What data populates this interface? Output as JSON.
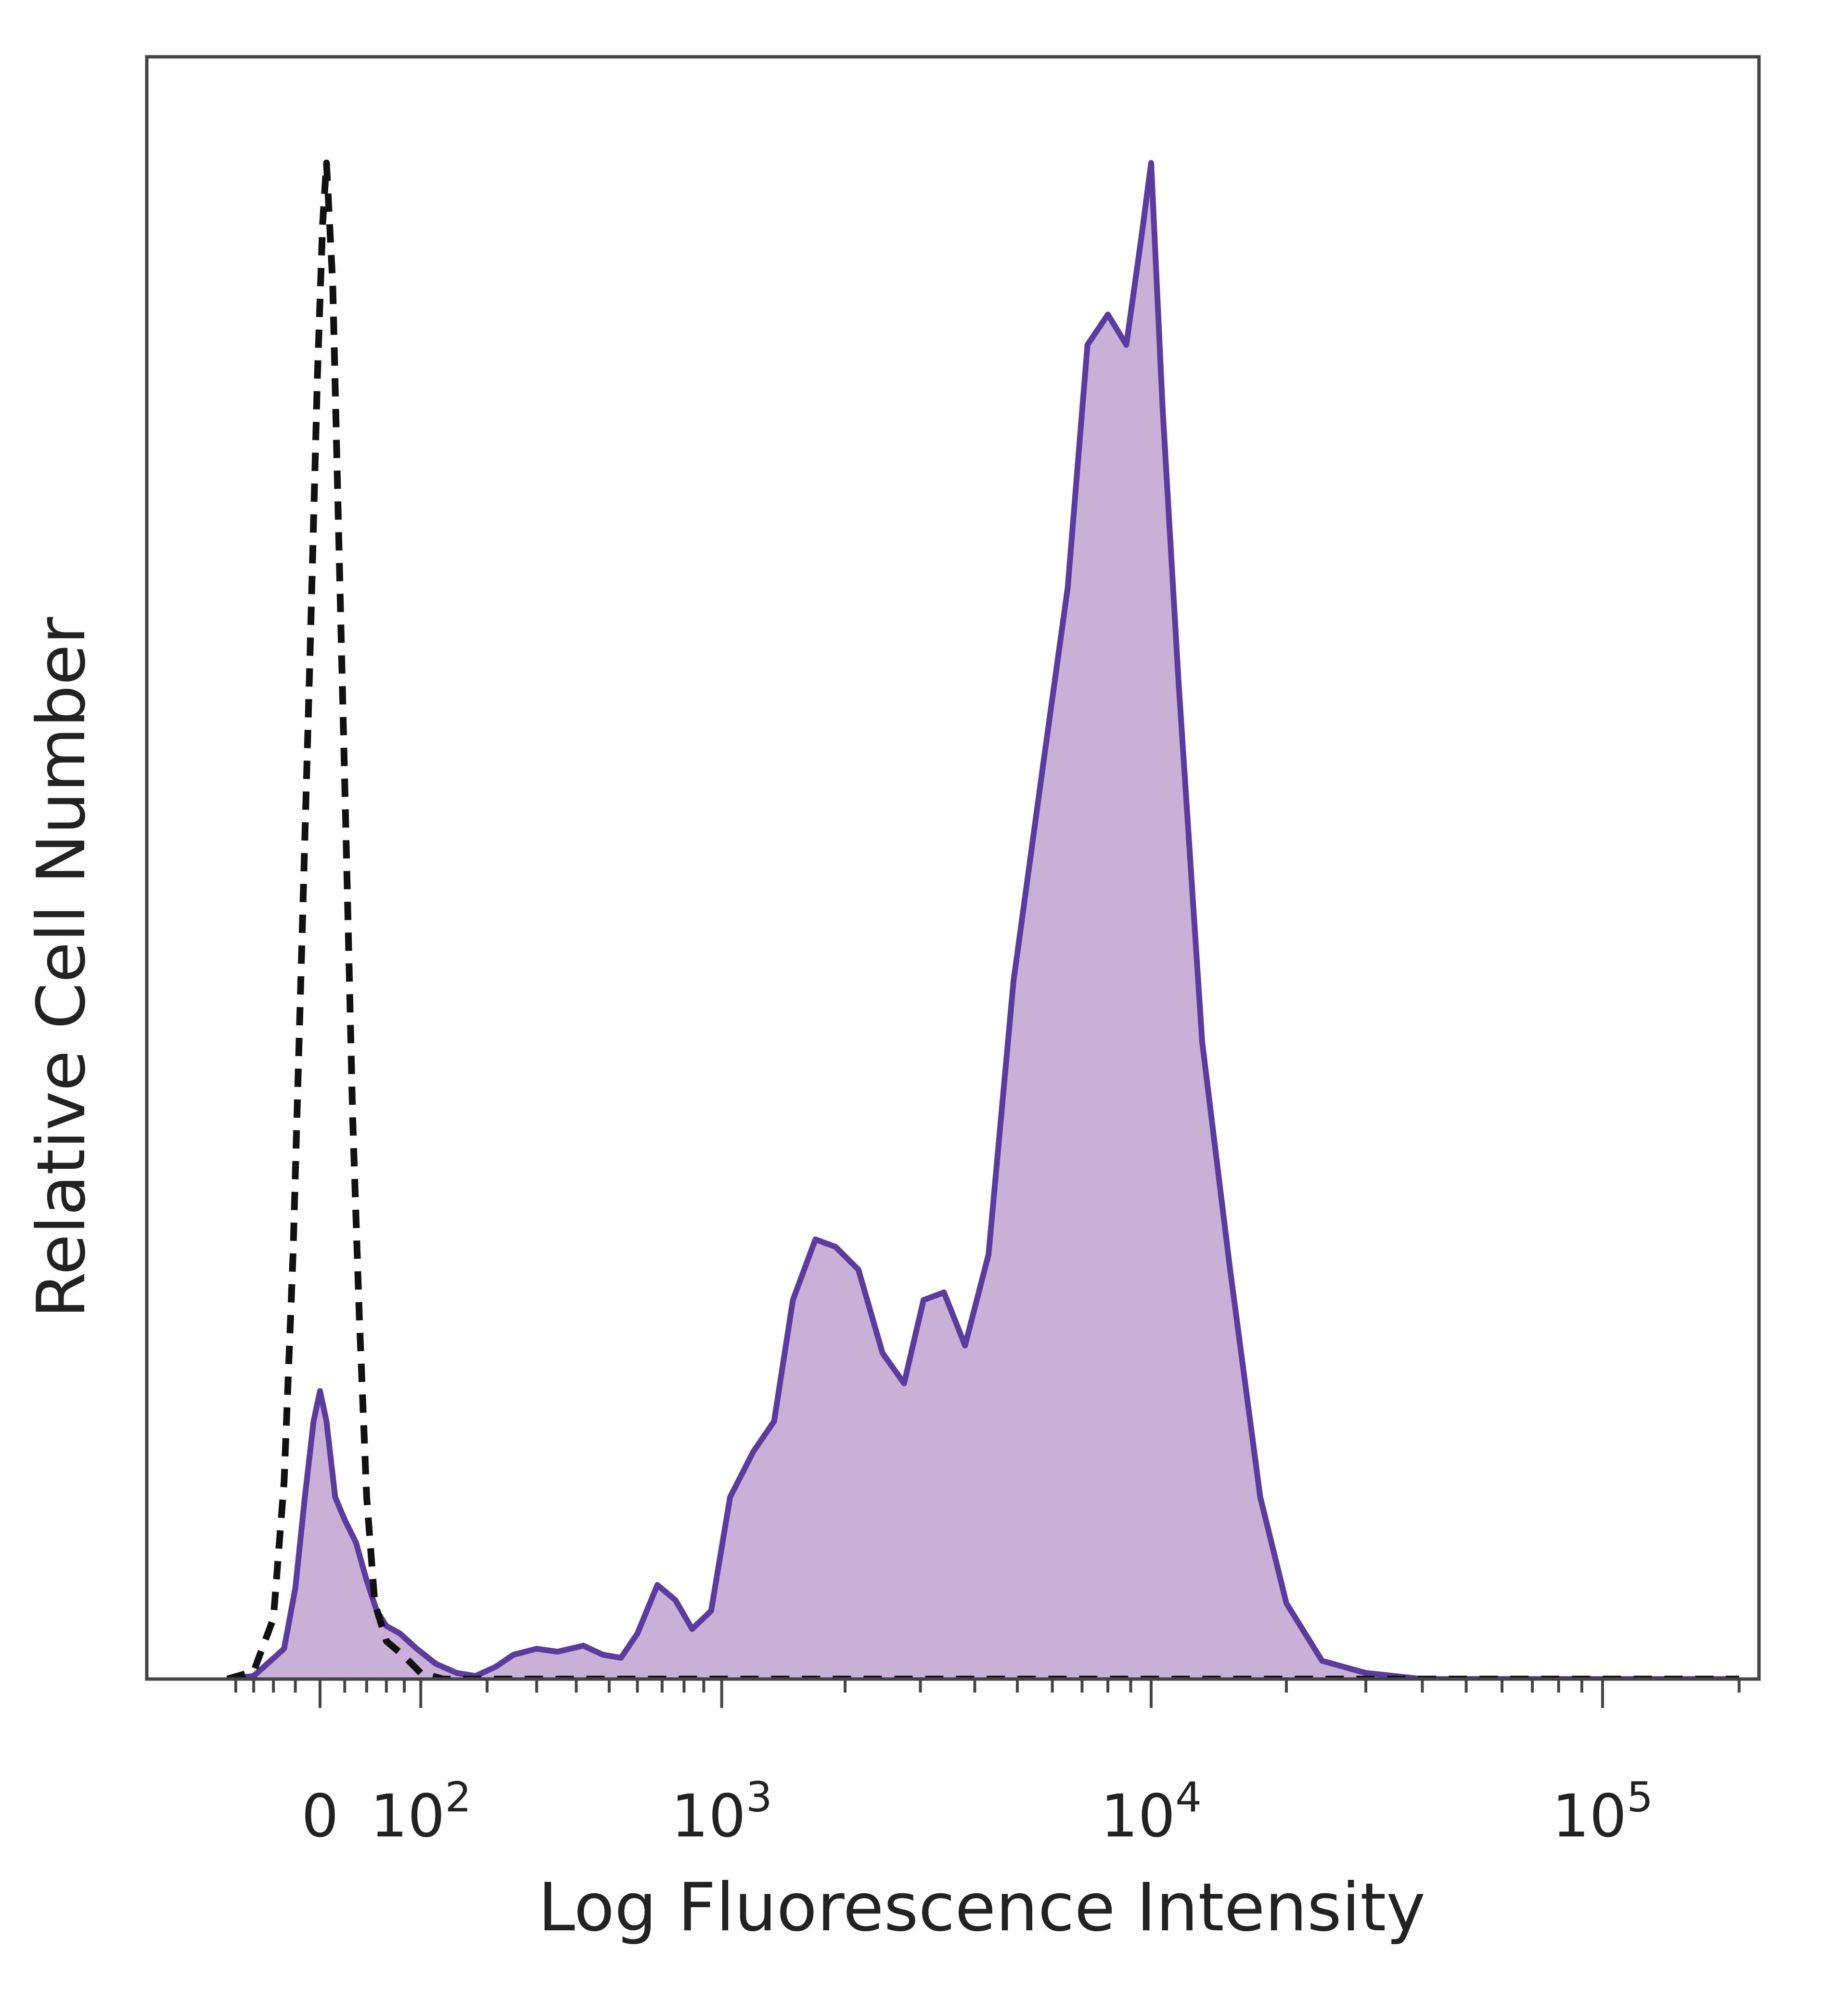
{
  "chart_data": {
    "type": "area",
    "title": "",
    "xlabel": "Log Fluorescence Intensity",
    "ylabel": "Relative Cell Number",
    "x_scale": "biexponential",
    "x_range": [
      -100,
      200000
    ],
    "y_range": [
      0,
      1.07
    ],
    "grid": false,
    "legend": "none",
    "x_ticks": [
      {
        "value": 0,
        "base": "0",
        "exp": ""
      },
      {
        "value": 100,
        "base": "10",
        "exp": "2"
      },
      {
        "value": 1000,
        "base": "10",
        "exp": "3"
      },
      {
        "value": 10000,
        "base": "10",
        "exp": "4"
      },
      {
        "value": 100000,
        "base": "10",
        "exp": "5"
      }
    ],
    "series": [
      {
        "style": "dashed-line",
        "color": "#111111",
        "points": [
          [
            -90,
            0
          ],
          [
            -60,
            0.005
          ],
          [
            -40,
            0.04
          ],
          [
            -30,
            0.13
          ],
          [
            -22,
            0.28
          ],
          [
            -15,
            0.47
          ],
          [
            -8,
            0.67
          ],
          [
            -2,
            0.86
          ],
          [
            2,
            0.96
          ],
          [
            5,
            1.0
          ],
          [
            10,
            0.92
          ],
          [
            15,
            0.75
          ],
          [
            21,
            0.56
          ],
          [
            27,
            0.37
          ],
          [
            33,
            0.24
          ],
          [
            40,
            0.12
          ],
          [
            48,
            0.05
          ],
          [
            60,
            0.025
          ],
          [
            80,
            0.015
          ],
          [
            100,
            0.004
          ],
          [
            130,
            0
          ],
          [
            200000,
            0
          ]
        ]
      },
      {
        "style": "filled",
        "color": "#5b3b9e",
        "fill": "#c9b0d6",
        "points": [
          [
            -90,
            0
          ],
          [
            -60,
            0.002
          ],
          [
            -30,
            0.02
          ],
          [
            -20,
            0.06
          ],
          [
            -12,
            0.12
          ],
          [
            -5,
            0.17
          ],
          [
            0,
            0.19
          ],
          [
            5,
            0.17
          ],
          [
            12,
            0.12
          ],
          [
            20,
            0.105
          ],
          [
            30,
            0.09
          ],
          [
            40,
            0.065
          ],
          [
            50,
            0.045
          ],
          [
            60,
            0.035
          ],
          [
            75,
            0.03
          ],
          [
            95,
            0.02
          ],
          [
            120,
            0.01
          ],
          [
            150,
            0.004
          ],
          [
            180,
            0.002
          ],
          [
            215,
            0.008
          ],
          [
            250,
            0.016
          ],
          [
            300,
            0.02
          ],
          [
            350,
            0.018
          ],
          [
            420,
            0.022
          ],
          [
            480,
            0.016
          ],
          [
            540,
            0.014
          ],
          [
            600,
            0.03
          ],
          [
            680,
            0.062
          ],
          [
            760,
            0.052
          ],
          [
            840,
            0.033
          ],
          [
            940,
            0.045
          ],
          [
            1050,
            0.12
          ],
          [
            1200,
            0.15
          ],
          [
            1350,
            0.17
          ],
          [
            1500,
            0.25
          ],
          [
            1700,
            0.29
          ],
          [
            1900,
            0.285
          ],
          [
            2150,
            0.27
          ],
          [
            2450,
            0.215
          ],
          [
            2750,
            0.195
          ],
          [
            3050,
            0.25
          ],
          [
            3400,
            0.255
          ],
          [
            3800,
            0.22
          ],
          [
            4300,
            0.28
          ],
          [
            4900,
            0.46
          ],
          [
            5700,
            0.6
          ],
          [
            6500,
            0.72
          ],
          [
            7200,
            0.88
          ],
          [
            8000,
            0.9
          ],
          [
            8800,
            0.88
          ],
          [
            9500,
            0.95
          ],
          [
            10000,
            1.0
          ],
          [
            10600,
            0.84
          ],
          [
            11500,
            0.66
          ],
          [
            13000,
            0.42
          ],
          [
            15000,
            0.27
          ],
          [
            17500,
            0.12
          ],
          [
            20000,
            0.05
          ],
          [
            24000,
            0.012
          ],
          [
            30000,
            0.004
          ],
          [
            40000,
            0
          ],
          [
            200000,
            0
          ]
        ]
      }
    ]
  }
}
